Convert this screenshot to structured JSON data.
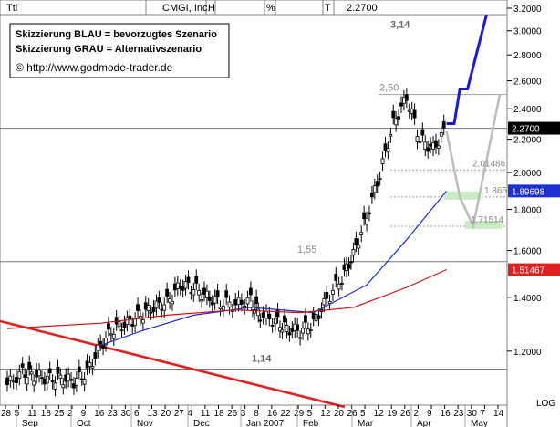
{
  "header": {
    "left_label": "Ttl",
    "symbol": "CMGI, Inc.",
    "col_h": "H",
    "col_pct": "%",
    "col_t": "T",
    "last_value": "2.2700"
  },
  "legend": {
    "line1": "Skizzierung BLAU = bevorzugtes Szenario",
    "line2": "Skizzierung GRAU = Alternativszenario",
    "link": "© http://www.godmode-trader.de"
  },
  "y_axis": {
    "ticks": [
      "3.2000",
      "3.0000",
      "2.8000",
      "2.6000",
      "2.4000",
      "2.2000",
      "2.0000",
      "1.8000",
      "1.6000",
      "1.4000",
      "1.2000"
    ],
    "tick_values": [
      3.2,
      3.0,
      2.8,
      2.6,
      2.4,
      2.2,
      2.0,
      1.8,
      1.6,
      1.4,
      1.2
    ],
    "scale": "log",
    "log_label": "LOG",
    "price_tags": [
      {
        "text": "2.2700",
        "value": 2.27,
        "bg": "#000000",
        "fg": "#ffffff"
      },
      {
        "text": "1.89698",
        "value": 1.89698,
        "bg": "#1f2fd0",
        "fg": "#ffffff"
      },
      {
        "text": "1.51467",
        "value": 1.51467,
        "bg": "#e02020",
        "fg": "#ffffff"
      }
    ]
  },
  "x_axis": {
    "day_labels": [
      "28",
      "5",
      "11",
      "18",
      "25",
      "2",
      "9",
      "16",
      "23",
      "30",
      "6",
      "13",
      "20",
      "27",
      "4",
      "11",
      "18",
      "26",
      "3",
      "8",
      "16",
      "22",
      "29",
      "5",
      "12",
      "20",
      "26",
      "5",
      "12",
      "19",
      "26",
      "2",
      "9",
      "16",
      "23",
      "30",
      "7",
      "14"
    ],
    "month_labels": [
      "Sep",
      "Oct",
      "Nov",
      "Dec",
      "Jan 2007",
      "Feb",
      "Mar",
      "Apr",
      "May"
    ]
  },
  "annotations": {
    "target_top": "3,14",
    "resist_1": "2,50",
    "level_1": "2.01486",
    "level_2": "1.865",
    "level_3": "1.71514",
    "level_mid": "1,55",
    "support_low": "1,14"
  },
  "colors": {
    "price_bar": "#000000",
    "ma_fast": "#1f2fd0",
    "ma_slow": "#cc1010",
    "trend_line": "#e81c1c",
    "scenario_blue": "#1a1ad6",
    "scenario_grey": "#bcbcbc",
    "zone_fill": "#c9ecc5",
    "hline": "#808080"
  },
  "chart_data": {
    "type": "line",
    "title": "CMGI, Inc.",
    "scale": "log",
    "ylim": [
      1.05,
      3.2
    ],
    "series": [
      {
        "name": "CMGI, Inc.",
        "x": [
          "2006-08-28",
          "2006-09-05",
          "2006-09-11",
          "2006-09-18",
          "2006-09-25",
          "2006-10-02",
          "2006-10-09",
          "2006-10-16",
          "2006-10-23",
          "2006-10-30",
          "2006-11-06",
          "2006-11-13",
          "2006-11-20",
          "2006-11-27",
          "2006-12-04",
          "2006-12-11",
          "2006-12-18",
          "2006-12-26",
          "2007-01-03",
          "2007-01-08",
          "2007-01-16",
          "2007-01-22",
          "2007-01-29",
          "2007-02-05",
          "2007-02-12",
          "2007-02-20",
          "2007-02-26",
          "2007-03-05",
          "2007-03-12",
          "2007-03-19",
          "2007-03-26",
          "2007-04-02",
          "2007-04-09",
          "2007-04-16"
        ],
        "values": [
          1.09,
          1.13,
          1.12,
          1.11,
          1.11,
          1.1,
          1.13,
          1.22,
          1.28,
          1.3,
          1.33,
          1.36,
          1.38,
          1.45,
          1.44,
          1.4,
          1.38,
          1.37,
          1.39,
          1.33,
          1.31,
          1.28,
          1.27,
          1.3,
          1.39,
          1.48,
          1.58,
          1.76,
          1.99,
          2.3,
          2.48,
          2.2,
          2.14,
          2.27
        ]
      },
      {
        "name": "",
        "x": [
          "2006-10-16",
          "2006-11-06",
          "2006-12-04",
          "2007-01-03",
          "2007-02-05",
          "2007-03-05",
          "2007-03-26",
          "2007-04-16"
        ],
        "values": [
          1.22,
          1.27,
          1.33,
          1.36,
          1.34,
          1.45,
          1.65,
          1.897
        ]
      },
      {
        "name": "",
        "x": [
          "2006-08-28",
          "2006-10-16",
          "2006-11-20",
          "2006-12-26",
          "2007-01-29",
          "2007-02-26",
          "2007-03-26",
          "2007-04-16"
        ],
        "values": [
          1.28,
          1.3,
          1.33,
          1.35,
          1.34,
          1.36,
          1.44,
          1.515
        ]
      }
    ],
    "levels": [
      3.14,
      2.5,
      2.01486,
      1.865,
      1.71514,
      1.55,
      1.14
    ],
    "scenario_blue": {
      "x": [
        "2007-04-16",
        "2007-04-20",
        "2007-04-23",
        "2007-04-27",
        "2007-05-07"
      ],
      "values": [
        2.3,
        2.3,
        2.54,
        2.54,
        3.14
      ]
    },
    "scenario_grey": {
      "x": [
        "2007-04-16",
        "2007-04-23",
        "2007-04-30",
        "2007-05-14"
      ],
      "values": [
        2.25,
        1.865,
        1.71514,
        2.5
      ]
    },
    "grid": false,
    "legend_position": "top-left"
  }
}
